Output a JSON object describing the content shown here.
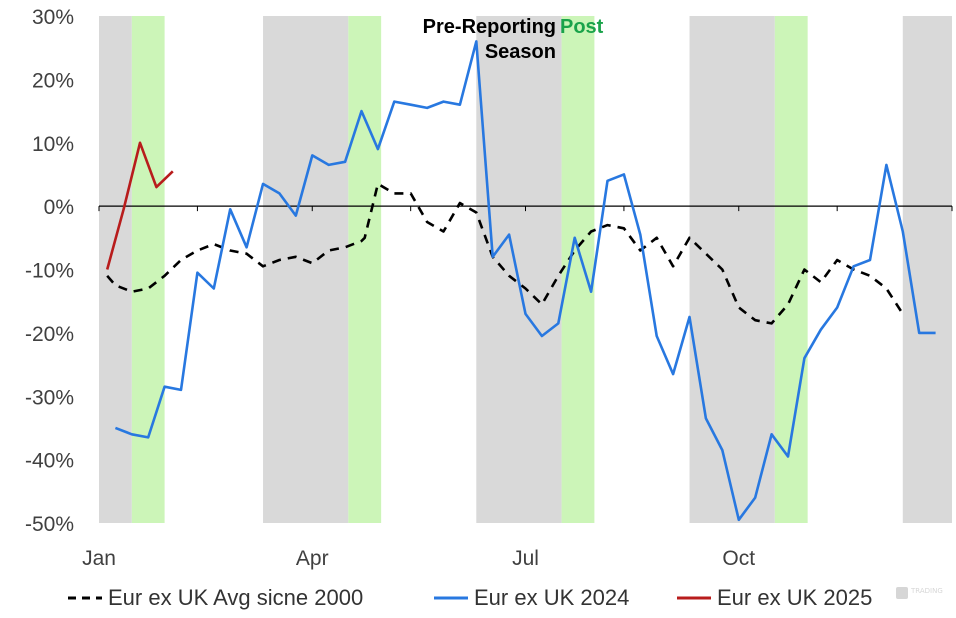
{
  "chart_data": {
    "type": "line",
    "x_unit": "week",
    "x_range": [
      1,
      53
    ],
    "ylim": [
      -50,
      30
    ],
    "y_ticks": [
      {
        "value": 30,
        "label": "30%"
      },
      {
        "value": 20,
        "label": "20%"
      },
      {
        "value": 10,
        "label": "10%"
      },
      {
        "value": 0,
        "label": "0%"
      },
      {
        "value": -10,
        "label": "-10%"
      },
      {
        "value": -20,
        "label": "-20%"
      },
      {
        "value": -30,
        "label": "-30%"
      },
      {
        "value": -40,
        "label": "-40%"
      },
      {
        "value": -50,
        "label": "-50%"
      }
    ],
    "x_ticks": [
      {
        "week": 1,
        "label": "Jan"
      },
      {
        "week": 14,
        "label": "Apr"
      },
      {
        "week": 27,
        "label": "Jul"
      },
      {
        "week": 40,
        "label": "Oct"
      }
    ],
    "annotations": {
      "pre_line1": "Pre-Reporting",
      "pre_line2": "Season",
      "post": "Post"
    },
    "bands": [
      {
        "kind": "pre",
        "from": 1,
        "to": 3,
        "color": "#d9d9d9"
      },
      {
        "kind": "post",
        "from": 3,
        "to": 5,
        "color": "#ccf5b8"
      },
      {
        "kind": "pre",
        "from": 11,
        "to": 16.2,
        "color": "#d9d9d9"
      },
      {
        "kind": "post",
        "from": 16.2,
        "to": 18.2,
        "color": "#ccf5b8"
      },
      {
        "kind": "pre",
        "from": 24,
        "to": 29.2,
        "color": "#d9d9d9"
      },
      {
        "kind": "post",
        "from": 29.2,
        "to": 31.2,
        "color": "#ccf5b8"
      },
      {
        "kind": "pre",
        "from": 37,
        "to": 42.2,
        "color": "#d9d9d9"
      },
      {
        "kind": "post",
        "from": 42.2,
        "to": 44.2,
        "color": "#ccf5b8"
      },
      {
        "kind": "pre",
        "from": 50,
        "to": 53,
        "color": "#d9d9d9"
      }
    ],
    "series": [
      {
        "name": "Eur ex UK Avg sicne 2000",
        "color": "#000000",
        "dash": true,
        "x": [
          1.5,
          2,
          3,
          4,
          5,
          6,
          7,
          8,
          9,
          10,
          11,
          12,
          13,
          14,
          15,
          16,
          17,
          17.2,
          18,
          19,
          20,
          21,
          22,
          23,
          24,
          25,
          26,
          27,
          28,
          29,
          30,
          31,
          32,
          33,
          34,
          35,
          36,
          37,
          38,
          39,
          40,
          41,
          42,
          43,
          44,
          45,
          46,
          47,
          48,
          49,
          50
        ],
        "y": [
          -11,
          -12.5,
          -13.5,
          -13,
          -11,
          -8.5,
          -7,
          -6,
          -7,
          -7.5,
          -9.5,
          -8.5,
          -8,
          -9,
          -7,
          -6.5,
          -5.5,
          -5,
          3.5,
          2,
          2,
          -2.5,
          -4,
          0.5,
          -1,
          -8,
          -11,
          -13,
          -15.5,
          -11,
          -7,
          -4,
          -3,
          -3.5,
          -7,
          -5,
          -9.5,
          -5,
          -7.5,
          -10,
          -16,
          -18,
          -18.5,
          -15.5,
          -10,
          -12,
          -8.5,
          -10,
          -11,
          -13,
          -17
        ]
      },
      {
        "name": "Eur ex UK 2024",
        "color": "#2878e0",
        "dash": false,
        "x": [
          2,
          3,
          4,
          5,
          6,
          7,
          8,
          9,
          10,
          11,
          12,
          13,
          14,
          15,
          16,
          17,
          18,
          19,
          20,
          21,
          22,
          23,
          24,
          25,
          26,
          27,
          28,
          29,
          30,
          31,
          32,
          33,
          34,
          35,
          36,
          37,
          38,
          39,
          40,
          41,
          42,
          43,
          44,
          45,
          46,
          47,
          48,
          49,
          50,
          51,
          52
        ],
        "y": [
          -35,
          -36,
          -36.5,
          -28.5,
          -29,
          -10.5,
          -13,
          -0.5,
          -6.5,
          3.5,
          2,
          -1.5,
          8,
          6.5,
          7,
          15,
          9,
          16.5,
          16,
          15.5,
          16.5,
          16,
          26,
          -8,
          -4.5,
          -17,
          -20.5,
          -18.5,
          -5,
          -13.5,
          4,
          5,
          -4.5,
          -20.5,
          -26.5,
          -17.5,
          -33.5,
          -38.5,
          -49.5,
          -46,
          -36,
          -39.5,
          -24,
          -19.5,
          -16,
          -9.5,
          -8.5,
          6.5,
          -4,
          -20,
          -20
        ]
      },
      {
        "name": "Eur ex UK 2025",
        "color": "#b81c1c",
        "dash": false,
        "x": [
          1.5,
          2.5,
          3.5,
          4.5,
          5.5
        ],
        "y": [
          -10,
          -0.5,
          10,
          3,
          5.5
        ]
      }
    ]
  }
}
